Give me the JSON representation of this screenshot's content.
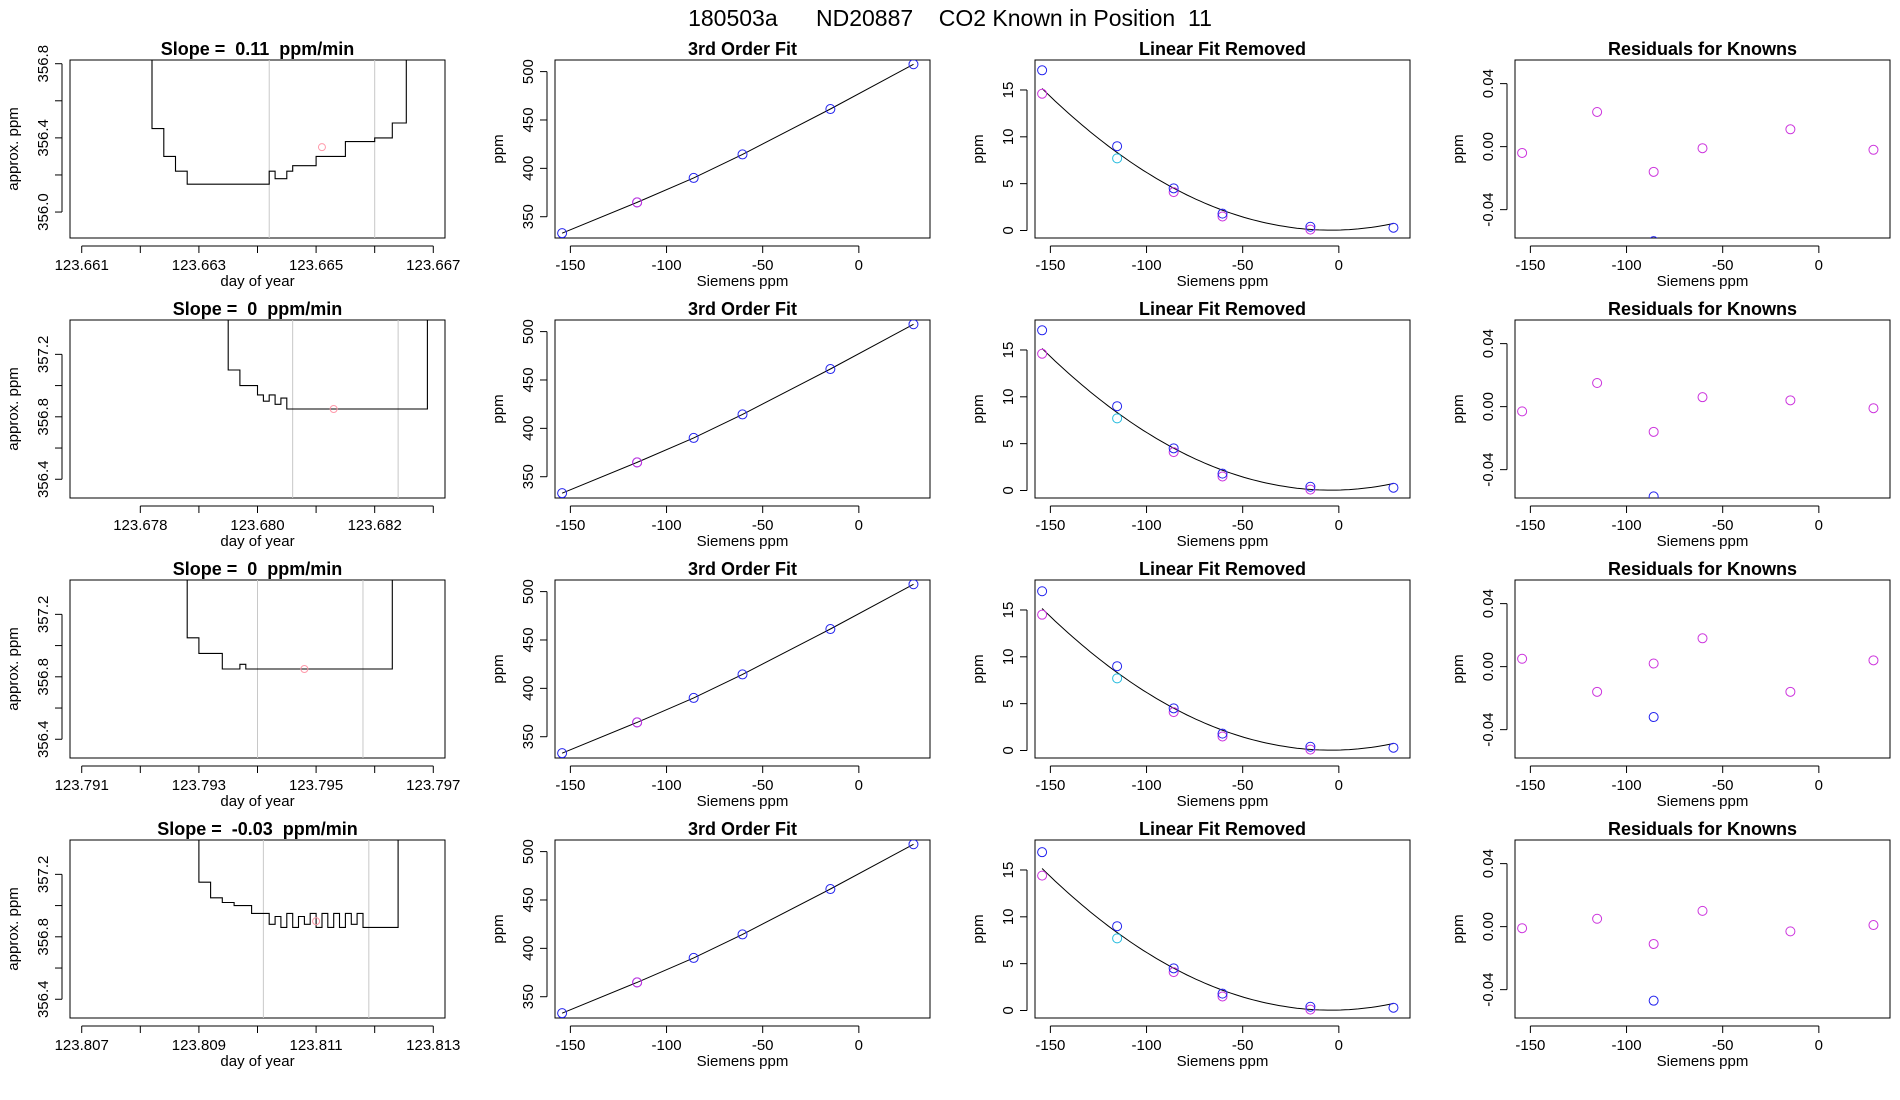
{
  "page_title": "180503a      ND20887    CO2 Known in Position  11",
  "colors": {
    "ink": "#000000",
    "blue": "#2222ee",
    "magenta": "#cc33dd",
    "cyan": "#22bbdd",
    "pink": "#ff99aa",
    "grid": "#c8c8c8"
  },
  "chart_data": [
    {
      "type": "line",
      "row": 0,
      "col": 0,
      "title": "Slope =  0.11  ppm/min",
      "xlabel": "day of year",
      "ylabel": "approx. ppm",
      "xlim": [
        123.6608,
        123.6672
      ],
      "ylim": [
        355.86,
        356.82
      ],
      "xticks": [
        123.661,
        123.662,
        123.663,
        123.664,
        123.665,
        123.666,
        123.667
      ],
      "xticklabels": [
        "123.661",
        "",
        "123.663",
        "",
        "123.665",
        "",
        "123.667"
      ],
      "yticks": [
        356.0,
        356.2,
        356.4,
        356.6,
        356.8
      ],
      "yticklabels": [
        "356.0",
        "",
        "356.4",
        "",
        "356.8"
      ],
      "vlines": [
        123.6642,
        123.666
      ],
      "marker": [
        123.6651,
        356.35
      ],
      "x": [
        123.6619,
        123.6622,
        123.6624,
        123.6626,
        123.6628,
        123.663,
        123.6632,
        123.6635,
        123.6638,
        123.6641,
        123.6642,
        123.6643,
        123.6645,
        123.6646,
        123.6648,
        123.665,
        123.6652,
        123.6655,
        123.6657,
        123.666,
        123.6663,
        123.6665,
        123.66654
      ],
      "y": [
        356.9,
        356.45,
        356.3,
        356.22,
        356.15,
        356.15,
        356.15,
        356.15,
        356.15,
        356.15,
        356.22,
        356.18,
        356.22,
        356.25,
        356.25,
        356.3,
        356.3,
        356.38,
        356.38,
        356.4,
        356.48,
        356.48,
        356.9
      ]
    },
    {
      "type": "scatter",
      "row": 0,
      "col": 1,
      "title": "3rd Order Fit",
      "xlabel": "Siemens ppm",
      "ylabel": "ppm",
      "xlim": [
        -158,
        37
      ],
      "ylim": [
        328,
        512
      ],
      "xticks": [
        -150,
        -100,
        -50,
        0
      ],
      "yticks": [
        350,
        400,
        450,
        500
      ],
      "x": [
        -154.3,
        -115.3,
        -85.9,
        -60.5,
        -14.8,
        28.4
      ],
      "y": [
        333,
        364.8,
        390.1,
        414.4,
        461.3,
        507.6
      ]
    },
    {
      "type": "scatter",
      "row": 0,
      "col": 2,
      "title": "Linear Fit Removed",
      "xlabel": "Siemens ppm",
      "ylabel": "ppm",
      "xlim": [
        -158,
        37
      ],
      "ylim": [
        -0.8,
        18.2
      ],
      "xticks": [
        -150,
        -100,
        -50,
        0
      ],
      "yticks": [
        0,
        5,
        10,
        15
      ],
      "blue": {
        "x": [
          -154.3,
          -115.3,
          -85.9,
          -60.5,
          -14.8,
          28.4
        ],
        "y": [
          17.1,
          9.0,
          4.5,
          1.8,
          0.4,
          0.3
        ]
      },
      "magenta": {
        "x": [
          -154.3,
          -85.9,
          -60.5,
          -14.8
        ],
        "y": [
          14.6,
          4.1,
          1.5,
          0.1
        ]
      },
      "cyan": {
        "x": [
          -115.3
        ],
        "y": [
          7.7
        ]
      }
    },
    {
      "type": "scatter",
      "row": 0,
      "col": 3,
      "title": "Residuals for Knowns",
      "xlabel": "Siemens ppm",
      "ylabel": "",
      "xlim": [
        -158,
        37
      ],
      "ylim": [
        -0.058,
        0.055
      ],
      "xticks": [
        -150,
        -100,
        -50,
        0
      ],
      "yticks": [
        -0.04,
        0.0,
        0.04
      ],
      "yticklabels": [
        "-0.04",
        "0.00",
        "0.04"
      ],
      "x": [
        -154.3,
        -115.3,
        -85.9,
        -60.5,
        -14.8,
        28.4
      ],
      "y": [
        -0.004,
        0.022,
        -0.016,
        -0.001,
        0.011,
        -0.002
      ],
      "blue": {
        "x": [
          -85.9
        ],
        "y": [
          -0.06
        ]
      }
    },
    {
      "type": "line",
      "row": 1,
      "col": 0,
      "title": "Slope =  0  ppm/min",
      "xlabel": "day of year",
      "ylabel": "approx. ppm",
      "xlim": [
        123.6768,
        123.6832
      ],
      "ylim": [
        356.28,
        357.42
      ],
      "xticks": [
        123.678,
        123.679,
        123.68,
        123.681,
        123.682,
        123.683
      ],
      "xticklabels": [
        "123.678",
        "",
        "123.680",
        "",
        "123.682",
        ""
      ],
      "yticks": [
        356.4,
        356.6,
        356.8,
        357.0,
        357.2
      ],
      "yticklabels": [
        "356.4",
        "",
        "356.8",
        "",
        "357.2"
      ],
      "vlines": [
        123.6806,
        123.6824
      ],
      "marker": [
        123.6813,
        356.85
      ],
      "x": [
        123.6792,
        123.6795,
        123.6797,
        123.68,
        123.6801,
        123.6802,
        123.6803,
        123.6804,
        123.6805,
        123.6806,
        123.6815,
        123.6824,
        123.68284,
        123.6829
      ],
      "y": [
        357.5,
        357.1,
        357.0,
        356.94,
        356.9,
        356.94,
        356.88,
        356.92,
        356.85,
        356.85,
        356.85,
        356.85,
        356.85,
        357.5
      ]
    },
    {
      "type": "scatter",
      "row": 1,
      "col": 1,
      "title": "3rd Order Fit",
      "xlabel": "Siemens ppm",
      "ylabel": "ppm",
      "xlim": [
        -158,
        37
      ],
      "ylim": [
        328,
        512
      ],
      "xticks": [
        -150,
        -100,
        -50,
        0
      ],
      "yticks": [
        350,
        400,
        450,
        500
      ],
      "x": [
        -154.3,
        -115.3,
        -85.9,
        -60.5,
        -14.8,
        28.4
      ],
      "y": [
        333,
        364.8,
        390.1,
        414.4,
        461.3,
        507.6
      ]
    },
    {
      "type": "scatter",
      "row": 1,
      "col": 2,
      "title": "Linear Fit Removed",
      "xlabel": "Siemens ppm",
      "ylabel": "ppm",
      "xlim": [
        -158,
        37
      ],
      "ylim": [
        -0.8,
        18.2
      ],
      "xticks": [
        -150,
        -100,
        -50,
        0
      ],
      "yticks": [
        0,
        5,
        10,
        15
      ],
      "blue": {
        "x": [
          -154.3,
          -115.3,
          -85.9,
          -60.5,
          -14.8,
          28.4
        ],
        "y": [
          17.1,
          9.0,
          4.5,
          1.8,
          0.4,
          0.3
        ]
      },
      "magenta": {
        "x": [
          -154.3,
          -85.9,
          -60.5,
          -14.8
        ],
        "y": [
          14.6,
          4.1,
          1.5,
          0.1
        ]
      },
      "cyan": {
        "x": [
          -115.3
        ],
        "y": [
          7.7
        ]
      }
    },
    {
      "type": "scatter",
      "row": 1,
      "col": 3,
      "title": "Residuals for Knowns",
      "xlabel": "Siemens ppm",
      "ylabel": "",
      "xlim": [
        -158,
        37
      ],
      "ylim": [
        -0.058,
        0.055
      ],
      "xticks": [
        -150,
        -100,
        -50,
        0
      ],
      "yticks": [
        -0.04,
        0.0,
        0.04
      ],
      "yticklabels": [
        "-0.04",
        "0.00",
        "0.04"
      ],
      "x": [
        -154.3,
        -115.3,
        -85.9,
        -60.5,
        -14.8,
        28.4
      ],
      "y": [
        -0.003,
        0.015,
        -0.016,
        0.006,
        0.004,
        -0.001
      ],
      "blue": {
        "x": [
          -85.9
        ],
        "y": [
          -0.057
        ]
      }
    },
    {
      "type": "line",
      "row": 2,
      "col": 0,
      "title": "Slope =  0  ppm/min",
      "xlabel": "day of year",
      "ylabel": "approx. ppm",
      "xlim": [
        123.7908,
        123.7972
      ],
      "ylim": [
        356.28,
        357.42
      ],
      "xticks": [
        123.791,
        123.792,
        123.793,
        123.794,
        123.795,
        123.796,
        123.797
      ],
      "xticklabels": [
        "123.791",
        "",
        "123.793",
        "",
        "123.795",
        "",
        "123.797"
      ],
      "yticks": [
        356.4,
        356.6,
        356.8,
        357.0,
        357.2
      ],
      "yticklabels": [
        "356.4",
        "",
        "356.8",
        "",
        "357.2"
      ],
      "vlines": [
        123.794,
        123.7958
      ],
      "marker": [
        123.7948,
        356.85
      ],
      "x": [
        123.7925,
        123.7928,
        123.793,
        123.7933,
        123.7934,
        123.7936,
        123.7937,
        123.7938,
        123.794,
        123.795,
        123.7958,
        123.79622,
        123.7963
      ],
      "y": [
        357.5,
        357.05,
        356.95,
        356.95,
        356.85,
        356.85,
        356.88,
        356.85,
        356.85,
        356.85,
        356.85,
        356.85,
        357.5
      ]
    },
    {
      "type": "scatter",
      "row": 2,
      "col": 1,
      "title": "3rd Order Fit",
      "xlabel": "Siemens ppm",
      "ylabel": "ppm",
      "xlim": [
        -158,
        37
      ],
      "ylim": [
        328,
        512
      ],
      "xticks": [
        -150,
        -100,
        -50,
        0
      ],
      "yticks": [
        350,
        400,
        450,
        500
      ],
      "x": [
        -154.3,
        -115.3,
        -85.9,
        -60.5,
        -14.8,
        28.4
      ],
      "y": [
        333,
        364.8,
        390.1,
        414.4,
        461.3,
        507.6
      ]
    },
    {
      "type": "scatter",
      "row": 2,
      "col": 2,
      "title": "Linear Fit Removed",
      "xlabel": "Siemens ppm",
      "ylabel": "ppm",
      "xlim": [
        -158,
        37
      ],
      "ylim": [
        -0.8,
        18.2
      ],
      "xticks": [
        -150,
        -100,
        -50,
        0
      ],
      "yticks": [
        0,
        5,
        10,
        15
      ],
      "blue": {
        "x": [
          -154.3,
          -115.3,
          -85.9,
          -60.5,
          -14.8,
          28.4
        ],
        "y": [
          17.0,
          9.0,
          4.5,
          1.8,
          0.4,
          0.3
        ]
      },
      "magenta": {
        "x": [
          -154.3,
          -85.9,
          -60.5,
          -14.8
        ],
        "y": [
          14.5,
          4.1,
          1.5,
          0.1
        ]
      },
      "cyan": {
        "x": [
          -115.3
        ],
        "y": [
          7.7
        ]
      }
    },
    {
      "type": "scatter",
      "row": 2,
      "col": 3,
      "title": "Residuals for Knowns",
      "xlabel": "Siemens ppm",
      "ylabel": "",
      "xlim": [
        -158,
        37
      ],
      "ylim": [
        -0.058,
        0.055
      ],
      "xticks": [
        -150,
        -100,
        -50,
        0
      ],
      "yticks": [
        -0.04,
        0.0,
        0.04
      ],
      "yticklabels": [
        "-0.04",
        "0.00",
        "0.04"
      ],
      "x": [
        -154.3,
        -115.3,
        -85.9,
        -60.5,
        -14.8,
        28.4
      ],
      "y": [
        0.005,
        -0.016,
        0.002,
        0.018,
        -0.016,
        0.004
      ],
      "blue": {
        "x": [
          -85.9
        ],
        "y": [
          -0.032
        ]
      }
    },
    {
      "type": "line",
      "row": 3,
      "col": 0,
      "title": "Slope =  -0.03  ppm/min",
      "xlabel": "day of year",
      "ylabel": "approx. ppm",
      "xlim": [
        123.8068,
        123.8132
      ],
      "ylim": [
        356.28,
        357.42
      ],
      "xticks": [
        123.807,
        123.808,
        123.809,
        123.81,
        123.811,
        123.812,
        123.813
      ],
      "xticklabels": [
        "123.807",
        "",
        "123.809",
        "",
        "123.811",
        "",
        "123.813"
      ],
      "yticks": [
        356.4,
        356.6,
        356.8,
        357.0,
        357.2
      ],
      "yticklabels": [
        "356.4",
        "",
        "356.8",
        "",
        "357.2"
      ],
      "vlines": [
        123.8101,
        123.8119
      ],
      "marker": [
        123.811,
        356.9
      ],
      "x": [
        123.8087,
        123.809,
        123.8092,
        123.8094,
        123.8096,
        123.8099,
        123.8101,
        123.8102,
        123.8103,
        123.8104,
        123.8105,
        123.8106,
        123.8107,
        123.8108,
        123.8109,
        123.811,
        123.8111,
        123.8112,
        123.8113,
        123.8114,
        123.8115,
        123.8116,
        123.8117,
        123.8118,
        123.8119,
        123.812,
        123.81238,
        123.8124
      ],
      "y": [
        357.5,
        357.15,
        357.05,
        357.02,
        357.0,
        356.95,
        356.95,
        356.88,
        356.93,
        356.86,
        356.95,
        356.86,
        356.93,
        356.88,
        356.95,
        356.86,
        356.95,
        356.86,
        356.95,
        356.86,
        356.95,
        356.88,
        356.95,
        356.86,
        356.86,
        356.86,
        356.86,
        357.5
      ]
    },
    {
      "type": "scatter",
      "row": 3,
      "col": 1,
      "title": "3rd Order Fit",
      "xlabel": "Siemens ppm",
      "ylabel": "ppm",
      "xlim": [
        -158,
        37
      ],
      "ylim": [
        328,
        512
      ],
      "xticks": [
        -150,
        -100,
        -50,
        0
      ],
      "yticks": [
        350,
        400,
        450,
        500
      ],
      "x": [
        -154.3,
        -115.3,
        -85.9,
        -60.5,
        -14.8,
        28.4
      ],
      "y": [
        333,
        364.8,
        390.1,
        414.4,
        461.3,
        507.6
      ]
    },
    {
      "type": "scatter",
      "row": 3,
      "col": 2,
      "title": "Linear Fit Removed",
      "xlabel": "Siemens ppm",
      "ylabel": "ppm",
      "xlim": [
        -158,
        37
      ],
      "ylim": [
        -0.8,
        18.2
      ],
      "xticks": [
        -150,
        -100,
        -50,
        0
      ],
      "yticks": [
        0,
        5,
        10,
        15
      ],
      "blue": {
        "x": [
          -154.3,
          -115.3,
          -85.9,
          -60.5,
          -14.8,
          28.4
        ],
        "y": [
          16.9,
          9.0,
          4.5,
          1.8,
          0.4,
          0.3
        ]
      },
      "magenta": {
        "x": [
          -154.3,
          -85.9,
          -60.5,
          -14.8
        ],
        "y": [
          14.4,
          4.1,
          1.5,
          0.1
        ]
      },
      "cyan": {
        "x": [
          -115.3
        ],
        "y": [
          7.7
        ]
      }
    },
    {
      "type": "scatter",
      "row": 3,
      "col": 3,
      "title": "Residuals for Knowns",
      "xlabel": "Siemens ppm",
      "ylabel": "",
      "xlim": [
        -158,
        37
      ],
      "ylim": [
        -0.058,
        0.055
      ],
      "xticks": [
        -150,
        -100,
        -50,
        0
      ],
      "yticks": [
        -0.04,
        0.0,
        0.04
      ],
      "yticklabels": [
        "-0.04",
        "0.00",
        "0.04"
      ],
      "x": [
        -154.3,
        -115.3,
        -85.9,
        -60.5,
        -14.8,
        28.4
      ],
      "y": [
        -0.001,
        0.005,
        -0.011,
        0.01,
        -0.003,
        0.001
      ],
      "blue": {
        "x": [
          -85.9
        ],
        "y": [
          -0.047
        ]
      }
    }
  ]
}
